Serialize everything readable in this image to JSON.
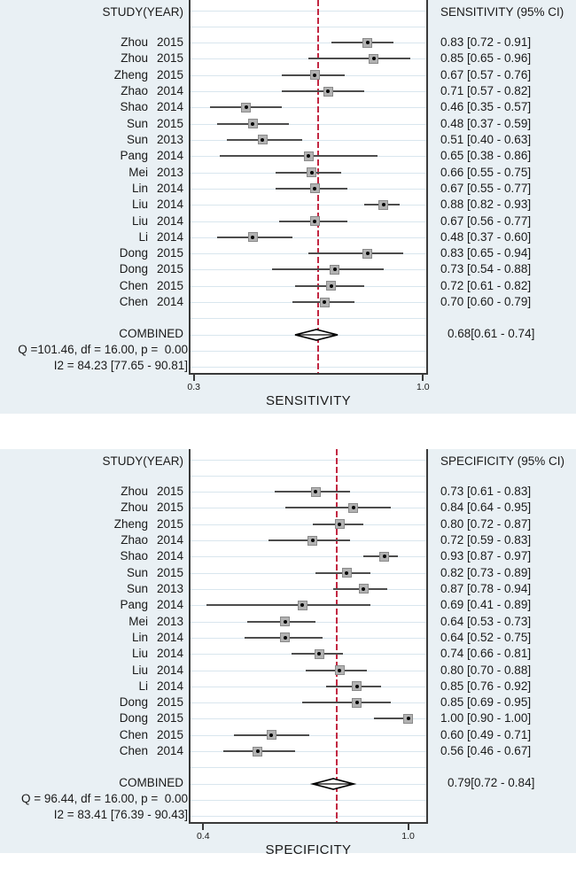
{
  "colors": {
    "panel_bg": "#e9f0f4",
    "plot_bg": "#ffffff",
    "grid": "#d9e6ee",
    "frame": "#3a3a3a",
    "ref_line": "#c22742",
    "ci_line": "#4d4d4d",
    "marker_fill": "#b2b2b2",
    "marker_border": "#8a8a8a",
    "marker_dot": "#000000",
    "diamond": "#000000",
    "text": "#1a1a1a"
  },
  "chart_data": [
    {
      "type": "forest",
      "header_left": "STUDY(YEAR)",
      "header_right": "SENSITIVITY (95% CI)",
      "xlabel": "SENSITIVITY",
      "xlim": [
        0.29,
        1.01
      ],
      "axis_ticks": [
        {
          "value": 0.3,
          "label": "0.3"
        },
        {
          "value": 1.0,
          "label": "1.0"
        }
      ],
      "ref_line": 0.68,
      "studies": [
        {
          "study": "Zhou",
          "year": "2015",
          "est": 0.83,
          "lo": 0.72,
          "hi": 0.91,
          "ci": "0.83 [0.72 - 0.91]"
        },
        {
          "study": "Zhou",
          "year": "2015",
          "est": 0.85,
          "lo": 0.65,
          "hi": 0.96,
          "ci": "0.85 [0.65 - 0.96]"
        },
        {
          "study": "Zheng",
          "year": "2015",
          "est": 0.67,
          "lo": 0.57,
          "hi": 0.76,
          "ci": "0.67 [0.57 - 0.76]"
        },
        {
          "study": "Zhao",
          "year": "2014",
          "est": 0.71,
          "lo": 0.57,
          "hi": 0.82,
          "ci": "0.71 [0.57 - 0.82]"
        },
        {
          "study": "Shao",
          "year": "2014",
          "est": 0.46,
          "lo": 0.35,
          "hi": 0.57,
          "ci": "0.46 [0.35 - 0.57]"
        },
        {
          "study": "Sun",
          "year": "2015",
          "est": 0.48,
          "lo": 0.37,
          "hi": 0.59,
          "ci": "0.48 [0.37 - 0.59]"
        },
        {
          "study": "Sun",
          "year": "2013",
          "est": 0.51,
          "lo": 0.4,
          "hi": 0.63,
          "ci": "0.51 [0.40 - 0.63]"
        },
        {
          "study": "Pang",
          "year": "2014",
          "est": 0.65,
          "lo": 0.38,
          "hi": 0.86,
          "ci": "0.65 [0.38 - 0.86]"
        },
        {
          "study": "Mei",
          "year": "2013",
          "est": 0.66,
          "lo": 0.55,
          "hi": 0.75,
          "ci": "0.66 [0.55 - 0.75]"
        },
        {
          "study": "Lin",
          "year": "2014",
          "est": 0.67,
          "lo": 0.55,
          "hi": 0.77,
          "ci": "0.67 [0.55 - 0.77]"
        },
        {
          "study": "Liu",
          "year": "2014",
          "est": 0.88,
          "lo": 0.82,
          "hi": 0.93,
          "ci": "0.88 [0.82 - 0.93]"
        },
        {
          "study": "Liu",
          "year": "2014",
          "est": 0.67,
          "lo": 0.56,
          "hi": 0.77,
          "ci": "0.67 [0.56 - 0.77]"
        },
        {
          "study": "Li",
          "year": "2014",
          "est": 0.48,
          "lo": 0.37,
          "hi": 0.6,
          "ci": "0.48 [0.37 - 0.60]"
        },
        {
          "study": "Dong",
          "year": "2015",
          "est": 0.83,
          "lo": 0.65,
          "hi": 0.94,
          "ci": "0.83 [0.65 - 0.94]"
        },
        {
          "study": "Dong",
          "year": "2015",
          "est": 0.73,
          "lo": 0.54,
          "hi": 0.88,
          "ci": "0.73 [0.54 - 0.88]"
        },
        {
          "study": "Chen",
          "year": "2015",
          "est": 0.72,
          "lo": 0.61,
          "hi": 0.82,
          "ci": "0.72 [0.61 - 0.82]"
        },
        {
          "study": "Chen",
          "year": "2014",
          "est": 0.7,
          "lo": 0.6,
          "hi": 0.79,
          "ci": "0.70 [0.60 - 0.79]"
        }
      ],
      "combined": {
        "label": "COMBINED",
        "est": 0.68,
        "lo": 0.61,
        "hi": 0.74,
        "ci": "0.68[0.61 - 0.74]"
      },
      "heterogeneity": [
        "Q =101.46, df = 16.00, p =  0.00",
        "I2 = 84.23 [77.65 - 90.81]"
      ]
    },
    {
      "type": "forest",
      "header_left": "STUDY(YEAR)",
      "header_right": "SPECIFICITY (95% CI)",
      "xlabel": "SPECIFICITY",
      "xlim": [
        0.363,
        1.053
      ],
      "axis_ticks": [
        {
          "value": 0.4,
          "label": "0.4"
        },
        {
          "value": 1.0,
          "label": "1.0"
        }
      ],
      "ref_line": 0.79,
      "studies": [
        {
          "study": "Zhou",
          "year": "2015",
          "est": 0.73,
          "lo": 0.61,
          "hi": 0.83,
          "ci": "0.73 [0.61 - 0.83]"
        },
        {
          "study": "Zhou",
          "year": "2015",
          "est": 0.84,
          "lo": 0.64,
          "hi": 0.95,
          "ci": "0.84 [0.64 - 0.95]"
        },
        {
          "study": "Zheng",
          "year": "2015",
          "est": 0.8,
          "lo": 0.72,
          "hi": 0.87,
          "ci": "0.80 [0.72 - 0.87]"
        },
        {
          "study": "Zhao",
          "year": "2014",
          "est": 0.72,
          "lo": 0.59,
          "hi": 0.83,
          "ci": "0.72 [0.59 - 0.83]"
        },
        {
          "study": "Shao",
          "year": "2014",
          "est": 0.93,
          "lo": 0.87,
          "hi": 0.97,
          "ci": "0.93 [0.87 - 0.97]"
        },
        {
          "study": "Sun",
          "year": "2015",
          "est": 0.82,
          "lo": 0.73,
          "hi": 0.89,
          "ci": "0.82 [0.73 - 0.89]"
        },
        {
          "study": "Sun",
          "year": "2013",
          "est": 0.87,
          "lo": 0.78,
          "hi": 0.94,
          "ci": "0.87 [0.78 - 0.94]"
        },
        {
          "study": "Pang",
          "year": "2014",
          "est": 0.69,
          "lo": 0.41,
          "hi": 0.89,
          "ci": "0.69 [0.41 - 0.89]"
        },
        {
          "study": "Mei",
          "year": "2013",
          "est": 0.64,
          "lo": 0.53,
          "hi": 0.73,
          "ci": "0.64 [0.53 - 0.73]"
        },
        {
          "study": "Lin",
          "year": "2014",
          "est": 0.64,
          "lo": 0.52,
          "hi": 0.75,
          "ci": "0.64 [0.52 - 0.75]"
        },
        {
          "study": "Liu",
          "year": "2014",
          "est": 0.74,
          "lo": 0.66,
          "hi": 0.81,
          "ci": "0.74 [0.66 - 0.81]"
        },
        {
          "study": "Liu",
          "year": "2014",
          "est": 0.8,
          "lo": 0.7,
          "hi": 0.88,
          "ci": "0.80 [0.70 - 0.88]"
        },
        {
          "study": "Li",
          "year": "2014",
          "est": 0.85,
          "lo": 0.76,
          "hi": 0.92,
          "ci": "0.85 [0.76 - 0.92]"
        },
        {
          "study": "Dong",
          "year": "2015",
          "est": 0.85,
          "lo": 0.69,
          "hi": 0.95,
          "ci": "0.85 [0.69 - 0.95]"
        },
        {
          "study": "Dong",
          "year": "2015",
          "est": 1.0,
          "lo": 0.9,
          "hi": 1.0,
          "ci": "1.00 [0.90 - 1.00]"
        },
        {
          "study": "Chen",
          "year": "2015",
          "est": 0.6,
          "lo": 0.49,
          "hi": 0.71,
          "ci": "0.60 [0.49 - 0.71]"
        },
        {
          "study": "Chen",
          "year": "2014",
          "est": 0.56,
          "lo": 0.46,
          "hi": 0.67,
          "ci": "0.56 [0.46 - 0.67]"
        }
      ],
      "combined": {
        "label": "COMBINED",
        "est": 0.79,
        "lo": 0.72,
        "hi": 0.84,
        "ci": "0.79[0.72 - 0.84]"
      },
      "heterogeneity": [
        "Q = 96.44, df = 16.00, p =  0.00",
        "I2 = 83.41 [76.39 - 90.43]"
      ]
    }
  ]
}
